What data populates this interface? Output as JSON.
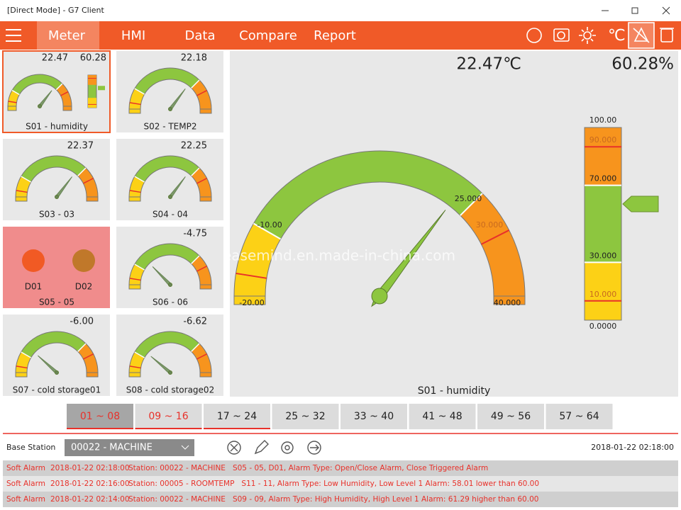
{
  "window": {
    "title": "[Direct Mode] - G7 Client"
  },
  "nav": {
    "items": [
      "Meter",
      "HMI",
      "Data",
      "Compare",
      "Report"
    ]
  },
  "tiles": [
    {
      "values": [
        "22.47",
        "60.28"
      ],
      "label": "S01 - humidity"
    },
    {
      "values": [
        "22.18"
      ],
      "label": "S02 - TEMP2"
    },
    {
      "values": [
        "22.37"
      ],
      "label": "S03 - 03"
    },
    {
      "values": [
        "22.25"
      ],
      "label": "S04 - 04"
    },
    {
      "digital": [
        "D01",
        "D02"
      ],
      "label": "S05 - 05"
    },
    {
      "values": [
        "-4.75"
      ],
      "label": "S06 - 06"
    },
    {
      "values": [
        "-6.00"
      ],
      "label": "S07 - cold storage01"
    },
    {
      "values": [
        "-6.62"
      ],
      "label": "S08 - cold storage02"
    }
  ],
  "main": {
    "temperature": "22.47℃",
    "humidity": "60.28%",
    "title": "S01 - humidity",
    "watermark": "easemind.en.made-in-china.com",
    "gauge_labels": [
      "-20.00",
      "-10.00",
      "25.000",
      "30.000",
      "40.000"
    ],
    "bar_labels": [
      "100.00",
      "90.000",
      "70.000",
      "30.000",
      "10.000",
      "0.0000"
    ]
  },
  "pages": [
    "01 ~ 08",
    "09 ~ 16",
    "17 ~ 24",
    "25 ~ 32",
    "33 ~ 40",
    "41 ~ 48",
    "49 ~ 56",
    "57 ~ 64"
  ],
  "station": {
    "label": "Base Station",
    "selected": "00022 - MACHINE",
    "datetime": "2018-01-22 02:18:00"
  },
  "alarms": [
    [
      "Soft Alarm",
      "2018-01-22 02:18:00",
      "Station: 00022 - MACHINE   S05 - 05, D01, Alarm Type: Open/Close Alarm, Close Triggered Alarm"
    ],
    [
      "Soft Alarm",
      "2018-01-22 02:16:00",
      "Station: 00005 - ROOMTEMP   S11 - 11, Alarm Type: Low Humidity, Low Level 1 Alarm: 58.01 lower than 60.00"
    ],
    [
      "Soft Alarm",
      "2018-01-22 02:14:00",
      "Station: 00022 - MACHINE   S09 - 09, Alarm Type: High Humidity, High Level 1 Alarm: 61.29 higher than 60.00"
    ]
  ]
}
